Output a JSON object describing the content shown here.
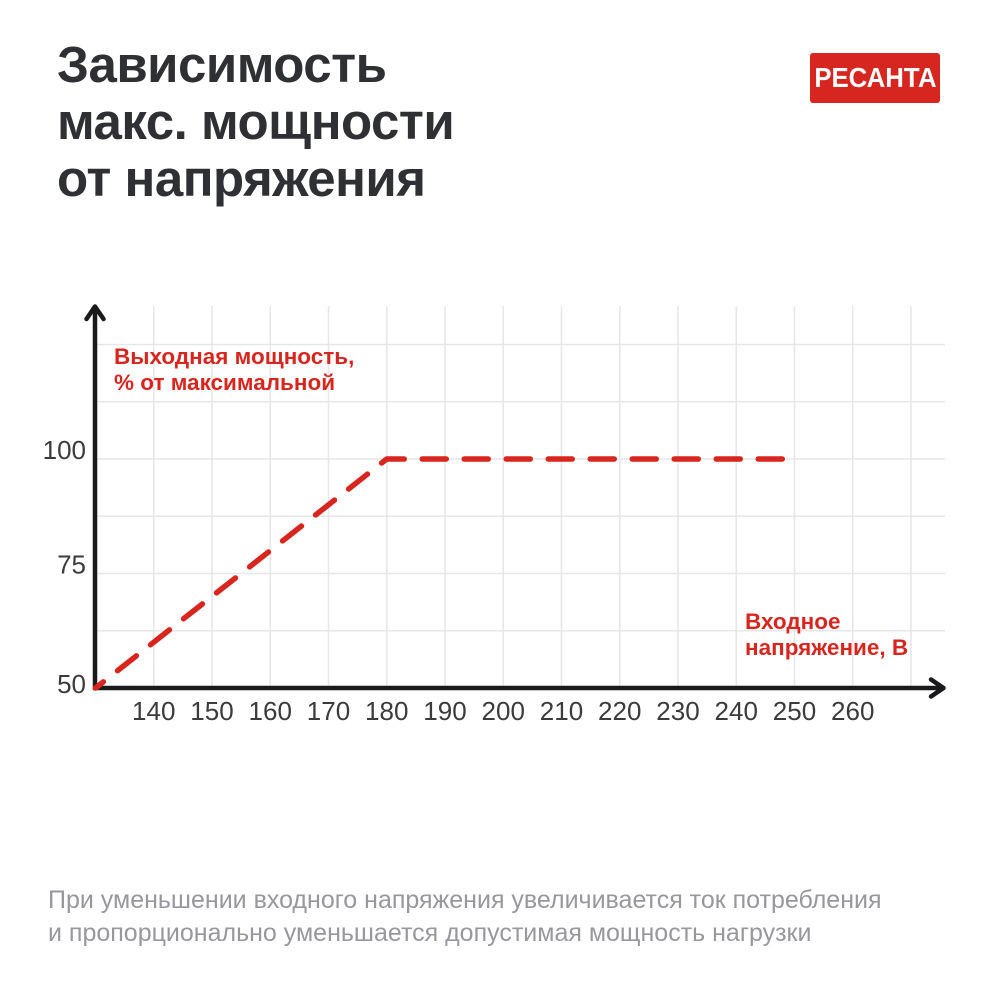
{
  "page": {
    "background": "#ffffff",
    "title_lines": [
      "Зависимость",
      "макс. мощности",
      "от напряжения"
    ],
    "brand": {
      "name": "РЕСАНТА",
      "bg_color": "#d7261f",
      "text_color": "#ffffff"
    },
    "caption_lines": [
      "При уменьшении входного напряжения увеличивается ток потребления",
      "и пропорционально уменьшается допустимая мощность нагрузки"
    ]
  },
  "chart_data": {
    "type": "line",
    "title": "Зависимость макс. мощности от напряжения",
    "xlabel": "Входное напряжение, В",
    "xlabel_lines": [
      "Входное",
      "напряжение, В"
    ],
    "ylabel": "Выходная мощность, % от максимальной",
    "ylabel_lines": [
      "Выходная мощность,",
      "% от максимальной"
    ],
    "x_ticks": [
      140,
      150,
      160,
      170,
      180,
      190,
      200,
      210,
      220,
      230,
      240,
      250,
      260
    ],
    "y_ticks": [
      50,
      75,
      100
    ],
    "xlim": [
      130,
      276
    ],
    "ylim": [
      50,
      134
    ],
    "grid": true,
    "x_grid_range": [
      140,
      270
    ],
    "x_grid_step": 10,
    "y_grid_range": [
      62.5,
      125
    ],
    "y_grid_step": 12.5,
    "grid_color": "#e7e7e9",
    "axis_color": "#1a1a1c",
    "tick_color": "#3b3b3d",
    "line_color": "#d8261f",
    "line_style": "dashed",
    "series": [
      {
        "name": "Выходная мощность, % от максимальной",
        "points": [
          [
            130,
            50
          ],
          [
            180,
            100
          ],
          [
            250,
            100
          ]
        ]
      }
    ]
  }
}
